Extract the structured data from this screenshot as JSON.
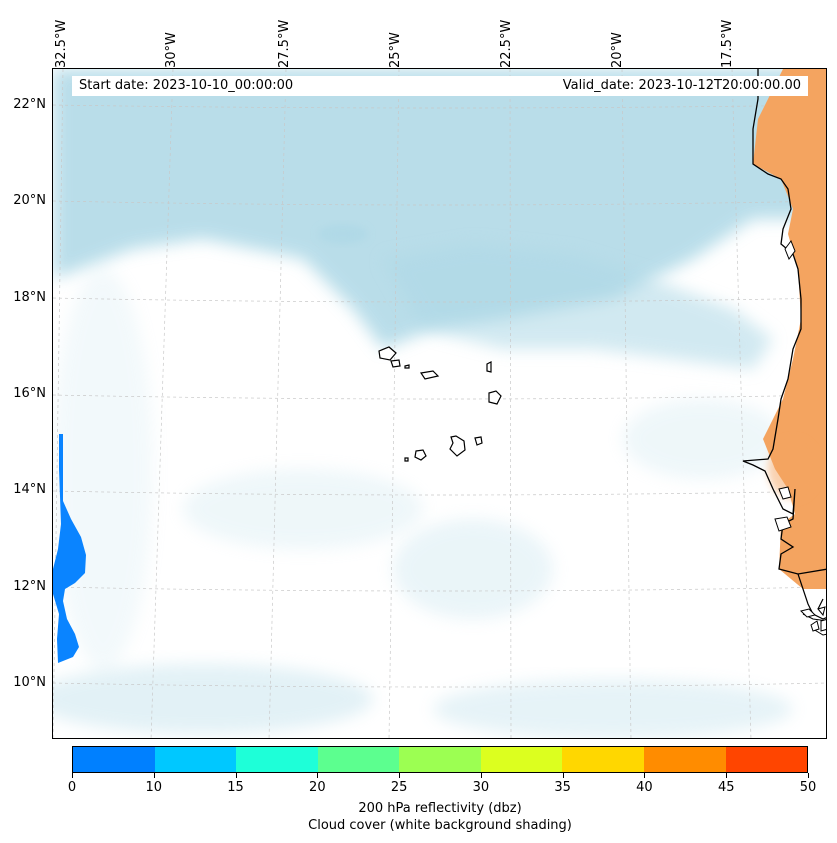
{
  "map": {
    "start_date": "Start date: 2023-10-10_00:00:00",
    "valid_date": "Valid_date: 2023-10-12T20:00:00.00",
    "lon_labels": [
      "32.5°W",
      "30°W",
      "27.5°W",
      "25°W",
      "22.5°W",
      "20°W",
      "17.5°W"
    ],
    "lat_labels": [
      "22°N",
      "20°N",
      "18°N",
      "16°N",
      "14°N",
      "12°N",
      "10°N"
    ],
    "islands": "Cape Verde islands",
    "land_color": "#f4a460",
    "cloud_color": "#add8e6",
    "reflectivity_color": "#0a84ff"
  },
  "colorbar": {
    "ticks": [
      "0",
      "10",
      "15",
      "20",
      "25",
      "30",
      "35",
      "40",
      "45",
      "50"
    ],
    "colors": [
      "#0080ff",
      "#00c8ff",
      "#1effd8",
      "#5cff8f",
      "#9cff52",
      "#dcff1f",
      "#ffd700",
      "#ff8c00",
      "#ff4500"
    ],
    "label_line1": "200 hPa reflectivity (dbz)",
    "label_line2": "Cloud cover (white background shading)"
  }
}
